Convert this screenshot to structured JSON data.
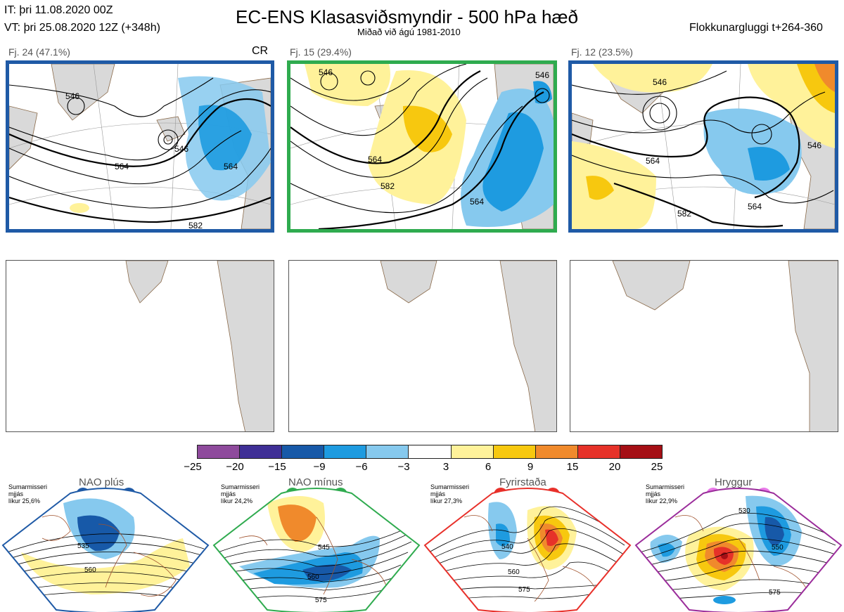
{
  "header": {
    "it": "IT: þri 11.08.2020 00Z",
    "vt": "VT: þri 25.08.2020 12Z  (+348h)",
    "title": "EC-ENS Klasasviðsmyndir - 500 hPa hæð",
    "subtitle": "Miðað við ágú 1981-2010",
    "window": "Flokkunargluggi t+264-360"
  },
  "panels": [
    {
      "label": "Fj. 24 (47.1%)",
      "tag": "CR",
      "border_color": "#1f5aa6",
      "contours": [
        "546",
        "564",
        "564",
        "546",
        "582"
      ]
    },
    {
      "label": "Fj. 15 (29.4%)",
      "tag": "",
      "border_color": "#2fab4f",
      "contours": [
        "546",
        "564",
        "582",
        "564",
        "546"
      ]
    },
    {
      "label": "Fj. 12 (23.5%)",
      "tag": "",
      "border_color": "#1f5aa6",
      "contours": [
        "546",
        "564",
        "564",
        "582",
        "546"
      ]
    }
  ],
  "colorbar": {
    "ticks": [
      "−25",
      "−20",
      "−15",
      "−9",
      "−6",
      "−3",
      "3",
      "6",
      "9",
      "15",
      "20",
      "25"
    ],
    "colors": [
      "#8e4a9c",
      "#3f2f96",
      "#1759a8",
      "#1e9be0",
      "#86c9ee",
      "#ffffff",
      "#fff29a",
      "#f7c80f",
      "#f08a2c",
      "#e63229",
      "#a50f15"
    ]
  },
  "regimes": [
    {
      "name": "NAO plús",
      "season": "Sumarmisseri",
      "mean": "mjjás",
      "prob": "líkur 25,6%",
      "color": "#1f5aa6",
      "contours": [
        "535",
        "560"
      ]
    },
    {
      "name": "NAO mínus",
      "season": "Sumarmisseri",
      "mean": "mjjás",
      "prob": "líkur 24,2%",
      "color": "#2fab4f",
      "contours": [
        "545",
        "560",
        "575"
      ]
    },
    {
      "name": "Fyrirstaða",
      "season": "Sumarmisseri",
      "mean": "mjjás",
      "prob": "líkur 27,3%",
      "color": "#e8302a",
      "contours": [
        "540",
        "560",
        "575"
      ]
    },
    {
      "name": "Hryggur",
      "season": "Sumarmisseri",
      "mean": "mjjás",
      "prob": "líkur 22,9%",
      "color": "#e879e8",
      "contours": [
        "530",
        "550",
        "575"
      ]
    }
  ]
}
